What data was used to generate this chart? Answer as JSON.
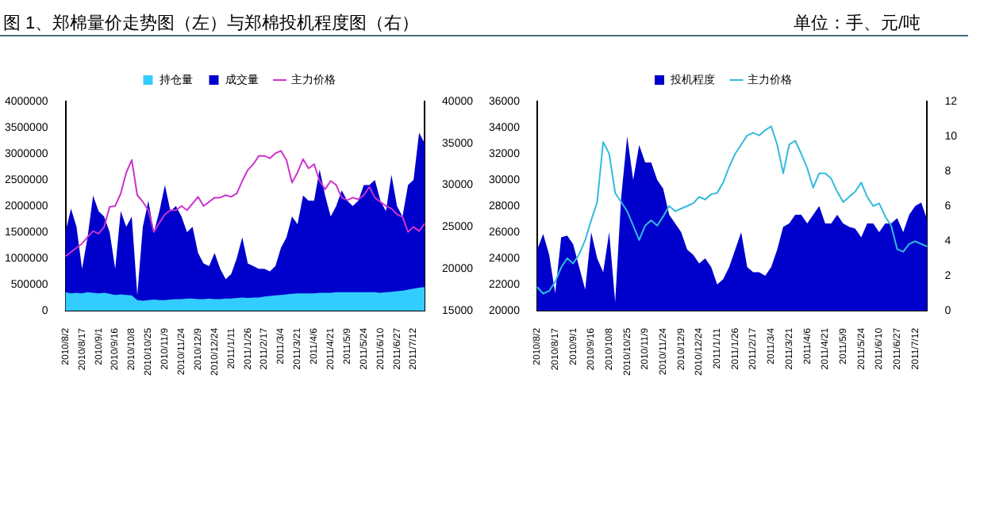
{
  "chart_data": [
    {
      "type": "area",
      "title": "图 1、郑棉量价走势图（左）与郑棉投机程度图（右）",
      "categories": [
        "2010/8/2",
        null,
        null,
        "2010/8/17",
        null,
        null,
        "2010/9/1",
        null,
        null,
        "2010/9/16",
        null,
        null,
        "2010/10/8",
        null,
        null,
        "2010/10/25",
        null,
        null,
        "2010/11/9",
        null,
        null,
        "2010/11/24",
        null,
        null,
        "2010/12/9",
        null,
        null,
        "2010/12/24",
        null,
        null,
        "2011/1/11",
        null,
        null,
        "2011/1/26",
        null,
        null,
        "2011/2/17",
        null,
        null,
        "2011/3/4",
        null,
        null,
        "2011/3/21",
        null,
        null,
        "2011/4/6",
        null,
        null,
        "2011/4/21",
        null,
        null,
        "2011/5/9",
        null,
        null,
        "2011/5/24",
        null,
        null,
        "2011/6/10",
        null,
        null,
        "2011/6/27",
        null,
        null,
        "2011/7/12",
        null,
        null
      ],
      "series": [
        {
          "name": "持仓量",
          "color": "#33ccff",
          "values": [
            350000,
            330000,
            340000,
            330000,
            350000,
            340000,
            330000,
            340000,
            320000,
            300000,
            310000,
            300000,
            290000,
            200000,
            190000,
            200000,
            210000,
            200000,
            200000,
            210000,
            220000,
            220000,
            230000,
            230000,
            220000,
            220000,
            230000,
            220000,
            220000,
            230000,
            230000,
            240000,
            250000,
            240000,
            250000,
            250000,
            270000,
            280000,
            290000,
            300000,
            310000,
            320000,
            330000,
            330000,
            330000,
            330000,
            340000,
            340000,
            340000,
            350000,
            350000,
            350000,
            350000,
            350000,
            350000,
            350000,
            350000,
            340000,
            350000,
            360000,
            370000,
            380000,
            400000,
            420000,
            440000,
            450000
          ]
        },
        {
          "name": "成交量",
          "color": "#0000cc",
          "values": [
            1500000,
            1950000,
            1600000,
            800000,
            1400000,
            2200000,
            1900000,
            1800000,
            1500000,
            800000,
            1900000,
            1600000,
            1800000,
            300000,
            1600000,
            2100000,
            1500000,
            1900000,
            2400000,
            1900000,
            2000000,
            1800000,
            1500000,
            1600000,
            1100000,
            900000,
            850000,
            1100000,
            800000,
            600000,
            700000,
            1000000,
            1400000,
            900000,
            850000,
            800000,
            800000,
            750000,
            850000,
            1200000,
            1400000,
            1800000,
            1650000,
            2200000,
            2100000,
            2100000,
            2700000,
            2200000,
            1800000,
            2000000,
            2300000,
            2100000,
            2000000,
            2100000,
            2400000,
            2400000,
            2500000,
            2100000,
            1900000,
            2600000,
            2000000,
            1800000,
            2400000,
            2500000,
            3400000,
            3200000
          ]
        },
        {
          "name": "主力价格",
          "type": "line",
          "axis": "y2",
          "color": "#cc33cc",
          "values": [
            21500,
            22000,
            22500,
            23000,
            23800,
            24500,
            24200,
            25000,
            27400,
            27500,
            29000,
            31500,
            33000,
            28800,
            28000,
            27000,
            24400,
            25500,
            26500,
            27000,
            27000,
            27500,
            27000,
            27800,
            28600,
            27500,
            28000,
            28500,
            28500,
            28800,
            28600,
            29000,
            30500,
            31800,
            32500,
            33500,
            33500,
            33200,
            33800,
            34100,
            33000,
            30300,
            31500,
            33100,
            32000,
            32500,
            30500,
            29500,
            30500,
            30000,
            28500,
            28200,
            28500,
            28300,
            28800,
            29800,
            28500,
            28000,
            27500,
            27200,
            26500,
            26200,
            24400,
            25000,
            24500,
            25400
          ]
        }
      ],
      "ylim": [
        0,
        4000000
      ],
      "yticks": [
        0,
        500000,
        1000000,
        1500000,
        2000000,
        2500000,
        3000000,
        3500000,
        4000000
      ],
      "y2lim": [
        15000,
        40000
      ],
      "y2ticks": [
        15000,
        20000,
        25000,
        30000,
        35000,
        40000
      ],
      "legend": "top",
      "marker": "none",
      "grid": false
    },
    {
      "type": "area",
      "subtitle": "单位：手、元/吨",
      "categories": [
        "2010/8/2",
        null,
        null,
        "2010/8/17",
        null,
        null,
        "2010/9/1",
        null,
        null,
        "2010/9/16",
        null,
        null,
        "2010/10/8",
        null,
        null,
        "2010/10/25",
        null,
        null,
        "2010/11/9",
        null,
        null,
        "2010/11/24",
        null,
        null,
        "2010/12/9",
        null,
        null,
        "2010/12/24",
        null,
        null,
        "2011/1/11",
        null,
        null,
        "2011/1/26",
        null,
        null,
        "2011/2/17",
        null,
        null,
        "2011/3/4",
        null,
        null,
        "2011/3/21",
        null,
        null,
        "2011/4/6",
        null,
        null,
        "2011/4/21",
        null,
        null,
        "2011/5/9",
        null,
        null,
        "2011/5/24",
        null,
        null,
        "2011/6/10",
        null,
        null,
        "2011/6/27",
        null,
        null,
        "2011/7/12",
        null,
        null
      ],
      "series": [
        {
          "name": "投机程度",
          "axis": "y2",
          "color": "#0000cc",
          "values": [
            3.5,
            4.4,
            3.2,
            1,
            4.2,
            4.3,
            3.8,
            2.5,
            1.2,
            4.5,
            3,
            2.2,
            4.5,
            0.5,
            6.5,
            10,
            7.5,
            9.5,
            8.5,
            8.5,
            7.5,
            7,
            5.5,
            5,
            4.5,
            3.5,
            3.2,
            2.7,
            3,
            2.5,
            1.5,
            1.8,
            2.5,
            3.5,
            4.5,
            2.5,
            2.2,
            2.2,
            2,
            2.5,
            3.5,
            4.8,
            5,
            5.5,
            5.5,
            5,
            5.5,
            6,
            5,
            5,
            5.5,
            5,
            4.8,
            4.7,
            4.2,
            5,
            5,
            4.5,
            5,
            5,
            5.3,
            4.5,
            5.5,
            6,
            6.2,
            5.2
          ]
        },
        {
          "name": "主力价格",
          "type": "line",
          "color": "#33bbdd",
          "values": [
            21800,
            21300,
            21500,
            22200,
            23300,
            24000,
            23600,
            24300,
            25400,
            26900,
            28300,
            32900,
            32000,
            29000,
            28300,
            27600,
            26500,
            25400,
            26500,
            26900,
            26500,
            27200,
            28000,
            27600,
            27800,
            28000,
            28200,
            28700,
            28500,
            28900,
            29000,
            29800,
            31000,
            32000,
            32700,
            33400,
            33600,
            33400,
            33800,
            34100,
            32700,
            30500,
            32700,
            33000,
            32000,
            30900,
            29400,
            30500,
            30500,
            30100,
            29100,
            28300,
            28700,
            29100,
            29800,
            28700,
            28000,
            28200,
            27200,
            26500,
            24700,
            24500,
            25100,
            25300,
            25100,
            24900
          ]
        }
      ],
      "ylim": [
        20000,
        36000
      ],
      "yticks": [
        20000,
        22000,
        24000,
        26000,
        28000,
        30000,
        32000,
        34000,
        36000
      ],
      "y2lim": [
        0,
        12
      ],
      "y2ticks": [
        0,
        2,
        4,
        6,
        8,
        10,
        12
      ],
      "legend": "top",
      "marker": "none",
      "grid": false
    }
  ]
}
